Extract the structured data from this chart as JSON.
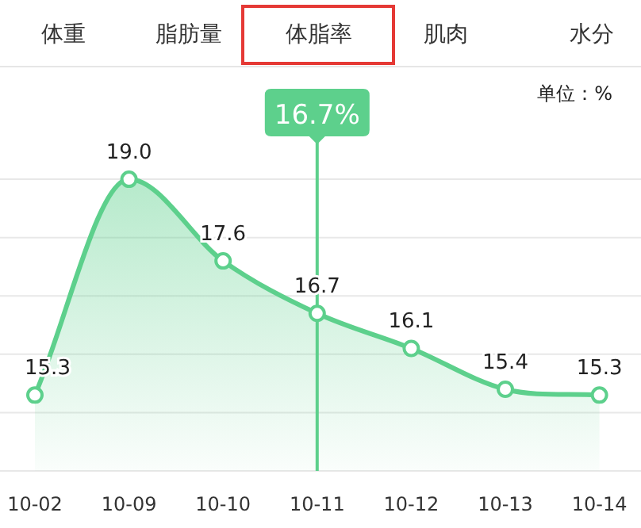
{
  "chart_data": {
    "type": "area",
    "annotations": [
      "体重",
      "脂肪量",
      "体脂率",
      "肌肉",
      "水分",
      "单位：%"
    ],
    "categories": [
      "10-02",
      "10-09",
      "10-10",
      "10-11",
      "10-12",
      "10-13",
      "10-14"
    ],
    "series": [
      {
        "color": "#5dd08c",
        "values": [
          15.3,
          19.0,
          17.6,
          16.7,
          16.1,
          15.4,
          15.3
        ],
        "value_labels": [
          "15.3",
          "19.0",
          "17.6",
          "16.7",
          "16.1",
          "15.4",
          "15.3"
        ]
      }
    ],
    "ylim": [
      14,
      20.85
    ],
    "yticks": [
      {
        "value": 15,
        "label": null
      },
      {
        "value": 16,
        "label": null
      },
      {
        "value": 17,
        "label": null
      },
      {
        "value": 18,
        "label": null
      },
      {
        "value": 19,
        "label": null
      }
    ],
    "grid": "y",
    "tick_labels": "x",
    "marker": "circle",
    "ref_lines": [
      {
        "axis": "x",
        "value": "10-11",
        "label": "16.7%",
        "color": "#5dd08c"
      }
    ]
  }
}
